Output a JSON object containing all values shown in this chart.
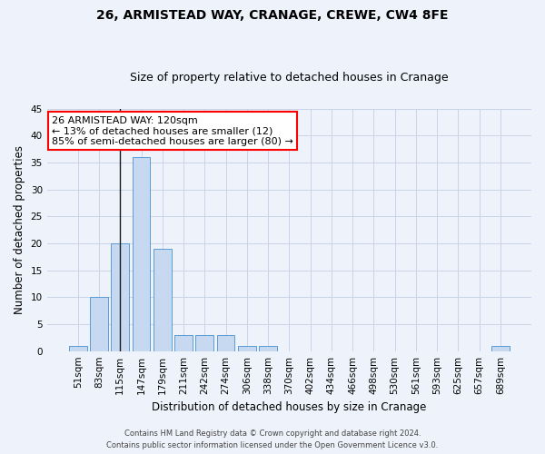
{
  "title1": "26, ARMISTEAD WAY, CRANAGE, CREWE, CW4 8FE",
  "title2": "Size of property relative to detached houses in Cranage",
  "xlabel": "Distribution of detached houses by size in Cranage",
  "ylabel": "Number of detached properties",
  "categories": [
    "51sqm",
    "83sqm",
    "115sqm",
    "147sqm",
    "179sqm",
    "211sqm",
    "242sqm",
    "274sqm",
    "306sqm",
    "338sqm",
    "370sqm",
    "402sqm",
    "434sqm",
    "466sqm",
    "498sqm",
    "530sqm",
    "561sqm",
    "593sqm",
    "625sqm",
    "657sqm",
    "689sqm"
  ],
  "values": [
    1,
    10,
    20,
    36,
    19,
    3,
    3,
    3,
    1,
    1,
    0,
    0,
    0,
    0,
    0,
    0,
    0,
    0,
    0,
    0,
    1
  ],
  "bar_color": "#c6d9f0",
  "bar_edge_color": "#5b9bd5",
  "ylim": [
    0,
    45
  ],
  "yticks": [
    0,
    5,
    10,
    15,
    20,
    25,
    30,
    35,
    40,
    45
  ],
  "vline_x_index": 2,
  "annotation_line1": "26 ARMISTEAD WAY: 120sqm",
  "annotation_line2": "← 13% of detached houses are smaller (12)",
  "annotation_line3": "85% of semi-detached houses are larger (80) →",
  "footer1": "Contains HM Land Registry data © Crown copyright and database right 2024.",
  "footer2": "Contains public sector information licensed under the Open Government Licence v3.0.",
  "background_color": "#eef2fa",
  "plot_bg_color": "#eef2fa",
  "grid_color": "#c8d4e8",
  "title_fontsize": 10,
  "subtitle_fontsize": 9,
  "tick_fontsize": 7.5,
  "ylabel_fontsize": 8.5,
  "xlabel_fontsize": 8.5,
  "footer_fontsize": 6,
  "annot_fontsize": 8
}
